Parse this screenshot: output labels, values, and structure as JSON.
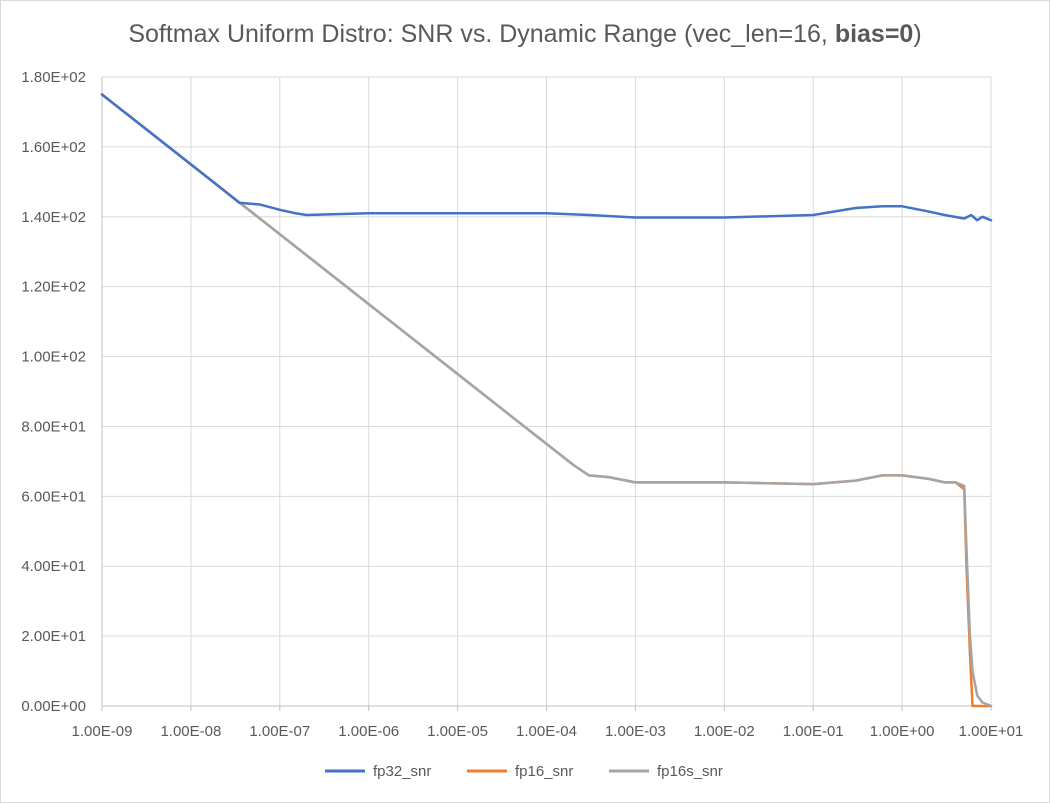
{
  "chart_data": {
    "type": "line",
    "title_main": "Softmax Uniform Distro: SNR vs. Dynamic Range (vec_len=16, ",
    "title_bold": "bias=0",
    "title_close": ")",
    "x_scale": "log",
    "x_range": [
      1e-09,
      10
    ],
    "y_range": [
      0,
      180
    ],
    "grid": true,
    "legend_position": "bottom",
    "y_ticks": [
      {
        "value": 0,
        "label": "0.00E+00"
      },
      {
        "value": 20,
        "label": "2.00E+01"
      },
      {
        "value": 40,
        "label": "4.00E+01"
      },
      {
        "value": 60,
        "label": "6.00E+01"
      },
      {
        "value": 80,
        "label": "8.00E+01"
      },
      {
        "value": 100,
        "label": "1.00E+02"
      },
      {
        "value": 120,
        "label": "1.20E+02"
      },
      {
        "value": 140,
        "label": "1.40E+02"
      },
      {
        "value": 160,
        "label": "1.60E+02"
      },
      {
        "value": 180,
        "label": "1.80E+02"
      }
    ],
    "x_ticks": [
      {
        "value": 1e-09,
        "label": "1.00E-09"
      },
      {
        "value": 1e-08,
        "label": "1.00E-08"
      },
      {
        "value": 1e-07,
        "label": "1.00E-07"
      },
      {
        "value": 1e-06,
        "label": "1.00E-06"
      },
      {
        "value": 1e-05,
        "label": "1.00E-05"
      },
      {
        "value": 0.0001,
        "label": "1.00E-04"
      },
      {
        "value": 0.001,
        "label": "1.00E-03"
      },
      {
        "value": 0.01,
        "label": "1.00E-02"
      },
      {
        "value": 0.1,
        "label": "1.00E-01"
      },
      {
        "value": 1,
        "label": "1.00E+00"
      },
      {
        "value": 10,
        "label": "1.00E+01"
      }
    ],
    "series": [
      {
        "name": "fp32_snr",
        "color": "#4472c4",
        "x": [
          1e-09,
          1e-08,
          2.5e-08,
          3.5e-08,
          6e-08,
          1e-07,
          1.5e-07,
          2e-07,
          5e-07,
          1e-06,
          1e-05,
          0.0001,
          0.0003,
          0.001,
          0.01,
          0.1,
          0.3,
          0.6,
          1,
          2,
          3,
          5,
          6,
          7,
          8,
          10
        ],
        "y": [
          175,
          155,
          147,
          144,
          143.5,
          142,
          141,
          140.5,
          140.8,
          141,
          141,
          141,
          140.5,
          139.8,
          139.8,
          140.5,
          142.5,
          143,
          143,
          141.5,
          140.5,
          139.5,
          140.5,
          139,
          140,
          139
        ]
      },
      {
        "name": "fp16_snr",
        "color": "#ed7d31",
        "x": [
          1e-09,
          1e-08,
          1e-07,
          1e-06,
          1e-05,
          0.0001,
          0.0002,
          0.0003,
          0.0005,
          0.001,
          0.01,
          0.1,
          0.3,
          0.6,
          1,
          2,
          3,
          4,
          5,
          5.3,
          5.8,
          6.2,
          7,
          10
        ],
        "y": [
          175,
          155,
          135,
          115,
          95,
          75,
          69,
          66,
          65.5,
          64,
          64,
          63.5,
          64.5,
          66,
          66,
          65,
          64,
          64,
          62,
          40,
          15,
          0,
          0,
          0
        ]
      },
      {
        "name": "fp16s_snr",
        "color": "#a5a5a5",
        "x": [
          1e-09,
          1e-08,
          1e-07,
          1e-06,
          1e-05,
          0.0001,
          0.0002,
          0.0003,
          0.0005,
          0.001,
          0.01,
          0.1,
          0.3,
          0.6,
          1,
          2,
          3,
          4,
          5,
          5.3,
          5.8,
          6.2,
          7,
          8,
          9,
          10
        ],
        "y": [
          175,
          155,
          135,
          115,
          95,
          75,
          69,
          66,
          65.5,
          64,
          64,
          63.5,
          64.5,
          66,
          66,
          65,
          64,
          64,
          63,
          45,
          20,
          10,
          3,
          1,
          0.5,
          0
        ]
      }
    ]
  }
}
